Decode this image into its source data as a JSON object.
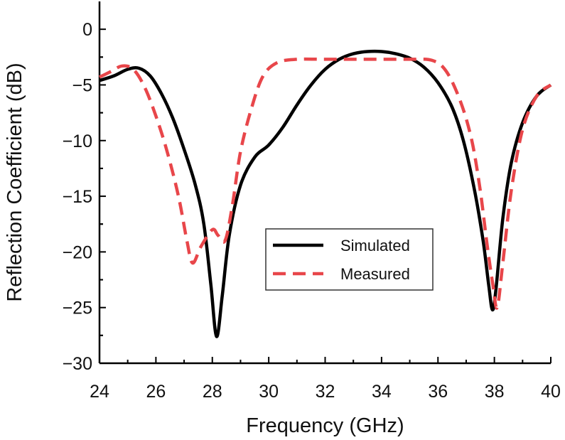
{
  "chart_data": {
    "type": "line",
    "xlabel": "Frequency (GHz)",
    "ylabel": "Reflection Coefficient (dB)",
    "xlim": [
      24,
      40
    ],
    "ylim": [
      -30,
      2.5
    ],
    "x_ticks": [
      24,
      26,
      28,
      30,
      32,
      34,
      36,
      38,
      40
    ],
    "y_ticks": [
      0,
      -5,
      -10,
      -15,
      -20,
      -25,
      -30
    ],
    "y_tick_labels": [
      "0",
      "−5",
      "−10",
      "−15",
      "−20",
      "−25",
      "−30"
    ],
    "grid": false,
    "legend_position": "center",
    "series": [
      {
        "name": "Simulated",
        "color": "#000000",
        "style": "solid",
        "points": [
          [
            24.0,
            -4.6
          ],
          [
            24.5,
            -4.2
          ],
          [
            25.0,
            -3.6
          ],
          [
            25.4,
            -3.5
          ],
          [
            25.8,
            -4.2
          ],
          [
            26.2,
            -5.8
          ],
          [
            26.6,
            -8.0
          ],
          [
            27.0,
            -10.8
          ],
          [
            27.4,
            -14.0
          ],
          [
            27.7,
            -17.5
          ],
          [
            27.95,
            -23.0
          ],
          [
            28.15,
            -27.6
          ],
          [
            28.35,
            -24.0
          ],
          [
            28.6,
            -18.5
          ],
          [
            29.0,
            -14.0
          ],
          [
            29.5,
            -11.5
          ],
          [
            30.0,
            -10.4
          ],
          [
            30.5,
            -8.8
          ],
          [
            31.0,
            -6.8
          ],
          [
            31.5,
            -5.0
          ],
          [
            32.0,
            -3.6
          ],
          [
            32.5,
            -2.7
          ],
          [
            33.0,
            -2.2
          ],
          [
            33.5,
            -2.0
          ],
          [
            34.0,
            -2.0
          ],
          [
            34.5,
            -2.2
          ],
          [
            35.0,
            -2.6
          ],
          [
            35.5,
            -3.4
          ],
          [
            36.0,
            -4.8
          ],
          [
            36.5,
            -7.0
          ],
          [
            36.9,
            -10.0
          ],
          [
            37.3,
            -14.5
          ],
          [
            37.6,
            -19.0
          ],
          [
            37.8,
            -23.0
          ],
          [
            37.93,
            -25.2
          ],
          [
            38.05,
            -23.5
          ],
          [
            38.3,
            -17.0
          ],
          [
            38.6,
            -12.0
          ],
          [
            39.0,
            -8.4
          ],
          [
            39.5,
            -6.0
          ],
          [
            40.0,
            -5.0
          ]
        ]
      },
      {
        "name": "Measured",
        "color": "#e8464a",
        "style": "dashed",
        "points": [
          [
            24.0,
            -4.3
          ],
          [
            24.4,
            -3.8
          ],
          [
            24.8,
            -3.3
          ],
          [
            25.2,
            -3.6
          ],
          [
            25.6,
            -5.2
          ],
          [
            26.0,
            -7.8
          ],
          [
            26.4,
            -11.0
          ],
          [
            26.8,
            -15.0
          ],
          [
            27.1,
            -19.0
          ],
          [
            27.3,
            -21.0
          ],
          [
            27.6,
            -19.5
          ],
          [
            28.0,
            -18.0
          ],
          [
            28.2,
            -18.5
          ],
          [
            28.45,
            -19.0
          ],
          [
            28.7,
            -16.0
          ],
          [
            29.0,
            -11.0
          ],
          [
            29.4,
            -7.0
          ],
          [
            29.8,
            -4.2
          ],
          [
            30.3,
            -3.0
          ],
          [
            31.0,
            -2.7
          ],
          [
            32.0,
            -2.7
          ],
          [
            33.0,
            -2.7
          ],
          [
            34.0,
            -2.7
          ],
          [
            35.0,
            -2.7
          ],
          [
            35.8,
            -2.8
          ],
          [
            36.3,
            -3.8
          ],
          [
            36.8,
            -6.5
          ],
          [
            37.2,
            -10.0
          ],
          [
            37.5,
            -14.5
          ],
          [
            37.75,
            -19.5
          ],
          [
            37.95,
            -23.0
          ],
          [
            38.1,
            -25.0
          ],
          [
            38.3,
            -21.0
          ],
          [
            38.6,
            -14.5
          ],
          [
            39.0,
            -9.0
          ],
          [
            39.5,
            -6.0
          ],
          [
            40.0,
            -5.0
          ]
        ]
      }
    ]
  }
}
